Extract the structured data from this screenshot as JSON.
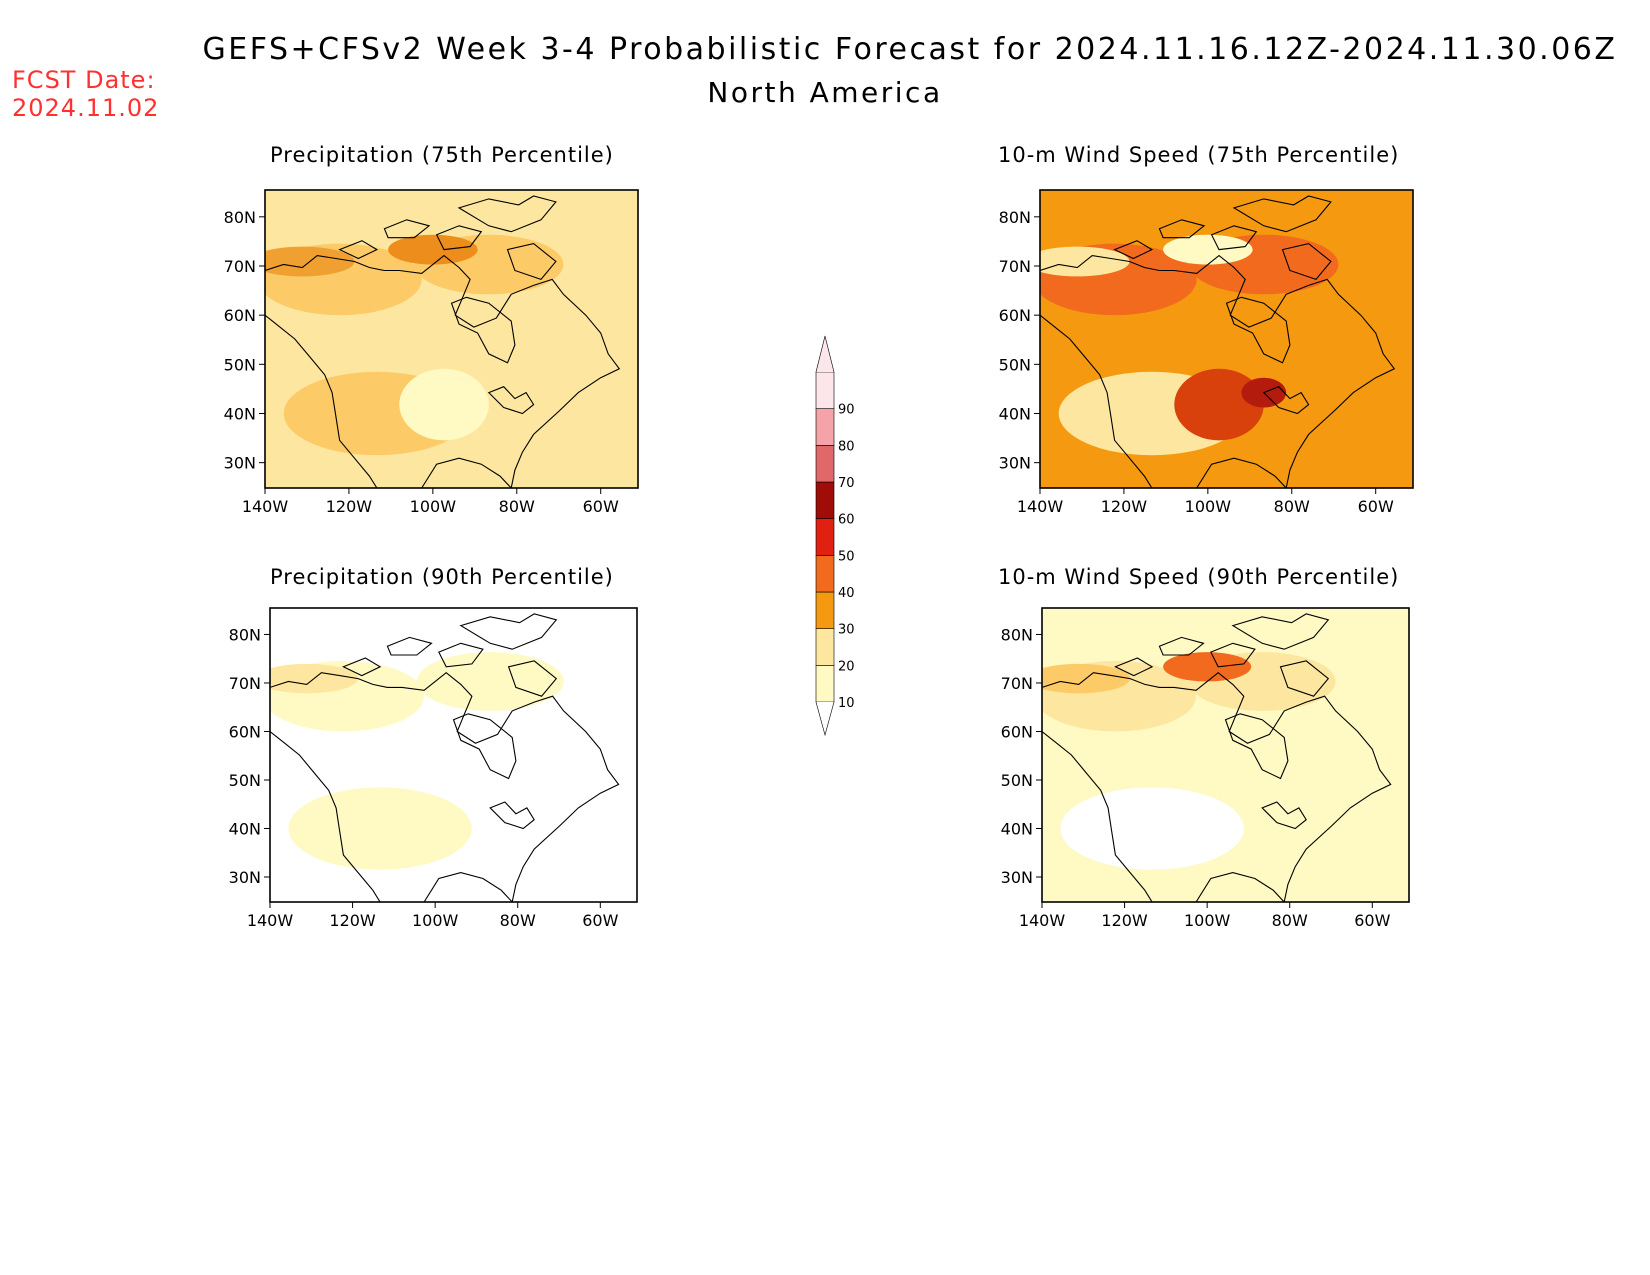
{
  "header": {
    "title": "GEFS+CFSv2 Week 3-4 Probabilistic Forecast for 2024.11.16.12Z-2024.11.30.06Z",
    "region": "North America",
    "fcst_label": "FCST Date:",
    "fcst_date": "2024.11.02"
  },
  "panels": [
    {
      "title": "Precipitation (75th Percentile)",
      "base_color": "#fde7a0",
      "spots": [
        "#fcca66",
        "#fcca66",
        "#fcca66",
        "#f0a030",
        "#ec8d1c",
        "#fff9c4"
      ]
    },
    {
      "title": "10-m Wind Speed (75th Percentile)",
      "base_color": "#f59a10",
      "spots": [
        "#f26a1e",
        "#f26a1e",
        "#fde7a0",
        "#fde7a0",
        "#fff9c4",
        "#d8400c",
        "#b31c0c"
      ]
    },
    {
      "title": "Precipitation (90th Percentile)",
      "base_color": "#ffffff",
      "spots": [
        "#fff9c4",
        "#fff9c4",
        "#fff9c4",
        "#fde7a0"
      ]
    },
    {
      "title": "10-m Wind Speed (90th Percentile)",
      "base_color": "#fff9c4",
      "spots": [
        "#fde7a0",
        "#fde7a0",
        "#ffffff",
        "#fcca66",
        "#f26a1e"
      ]
    }
  ],
  "axes": {
    "lat_ticks": [
      "80N",
      "70N",
      "60N",
      "50N",
      "40N",
      "30N"
    ],
    "lon_ticks": [
      "140W",
      "120W",
      "100W",
      "80W",
      "60W"
    ]
  },
  "colorbar": {
    "levels": [
      "10",
      "20",
      "30",
      "40",
      "50",
      "60",
      "70",
      "80",
      "90"
    ],
    "colors": [
      "#fff9c4",
      "#fde7a0",
      "#f59a10",
      "#f26a1e",
      "#e02010",
      "#a00c08",
      "#e06868",
      "#f4a4a8",
      "#fde6ea"
    ]
  }
}
